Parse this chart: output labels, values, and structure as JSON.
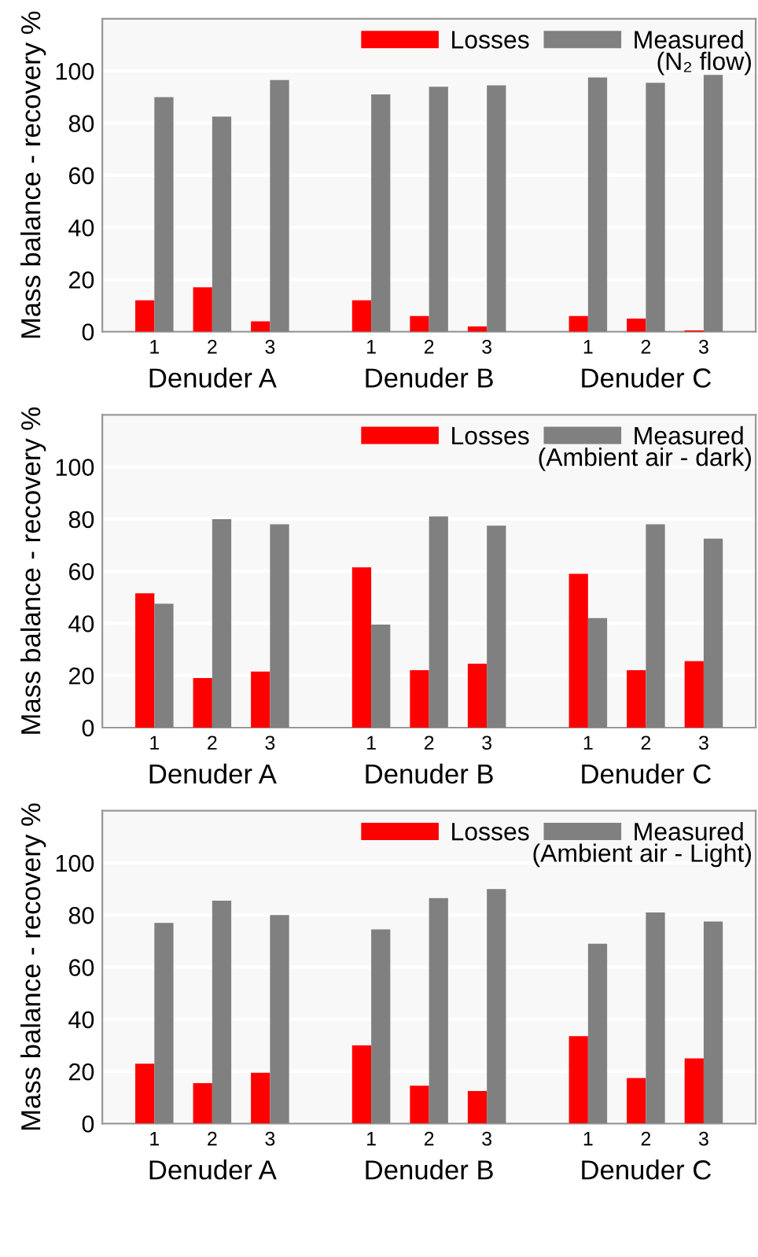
{
  "chart_data": [
    {
      "type": "bar",
      "subtitle": "(N₂ flow)",
      "ylabel": "Mass balance - recovery %",
      "categories": [
        "1",
        "2",
        "3",
        "1",
        "2",
        "3",
        "1",
        "2",
        "3"
      ],
      "annotations": [
        "Denuder A",
        "Denuder B",
        "Denuder C"
      ],
      "ylim": [
        0,
        120
      ],
      "yticks": [
        0,
        20,
        40,
        60,
        80,
        100
      ],
      "grid": "y",
      "legend": "top right",
      "series": [
        {
          "name": "Losses",
          "color": "#ff0000",
          "values": [
            12,
            17,
            4,
            12,
            6,
            2,
            6,
            5,
            0.5
          ]
        },
        {
          "name": "Measured",
          "color": "#808080",
          "values": [
            90,
            82.5,
            96.5,
            91,
            94,
            94.5,
            97.5,
            95.5,
            98.5
          ]
        }
      ]
    },
    {
      "type": "bar",
      "subtitle": "(Ambient air - dark)",
      "ylabel": "Mass balance - recovery %",
      "categories": [
        "1",
        "2",
        "3",
        "1",
        "2",
        "3",
        "1",
        "2",
        "3"
      ],
      "annotations": [
        "Denuder A",
        "Denuder B",
        "Denuder C"
      ],
      "ylim": [
        0,
        120
      ],
      "yticks": [
        0,
        20,
        40,
        60,
        80,
        100
      ],
      "grid": "y",
      "legend": "top right",
      "series": [
        {
          "name": "Losses",
          "color": "#ff0000",
          "values": [
            51.5,
            19,
            21.5,
            61.5,
            22,
            24.5,
            59,
            22,
            25.5
          ]
        },
        {
          "name": "Measured",
          "color": "#808080",
          "values": [
            47.5,
            80,
            78,
            39.5,
            81,
            77.5,
            42,
            78,
            72.5
          ]
        }
      ]
    },
    {
      "type": "bar",
      "subtitle": "(Ambient air - Light)",
      "ylabel": "Mass balance - recovery %",
      "categories": [
        "1",
        "2",
        "3",
        "1",
        "2",
        "3",
        "1",
        "2",
        "3"
      ],
      "annotations": [
        "Denuder A",
        "Denuder B",
        "Denuder C"
      ],
      "ylim": [
        0,
        120
      ],
      "yticks": [
        0,
        20,
        40,
        60,
        80,
        100
      ],
      "grid": "y",
      "legend": "top right",
      "series": [
        {
          "name": "Losses",
          "color": "#ff0000",
          "values": [
            23,
            15.5,
            19.5,
            30,
            14.5,
            12.5,
            33.5,
            17.5,
            25
          ]
        },
        {
          "name": "Measured",
          "color": "#808080",
          "values": [
            77,
            85.5,
            80,
            74.5,
            86.5,
            90,
            69,
            81,
            77.5
          ]
        }
      ]
    }
  ]
}
